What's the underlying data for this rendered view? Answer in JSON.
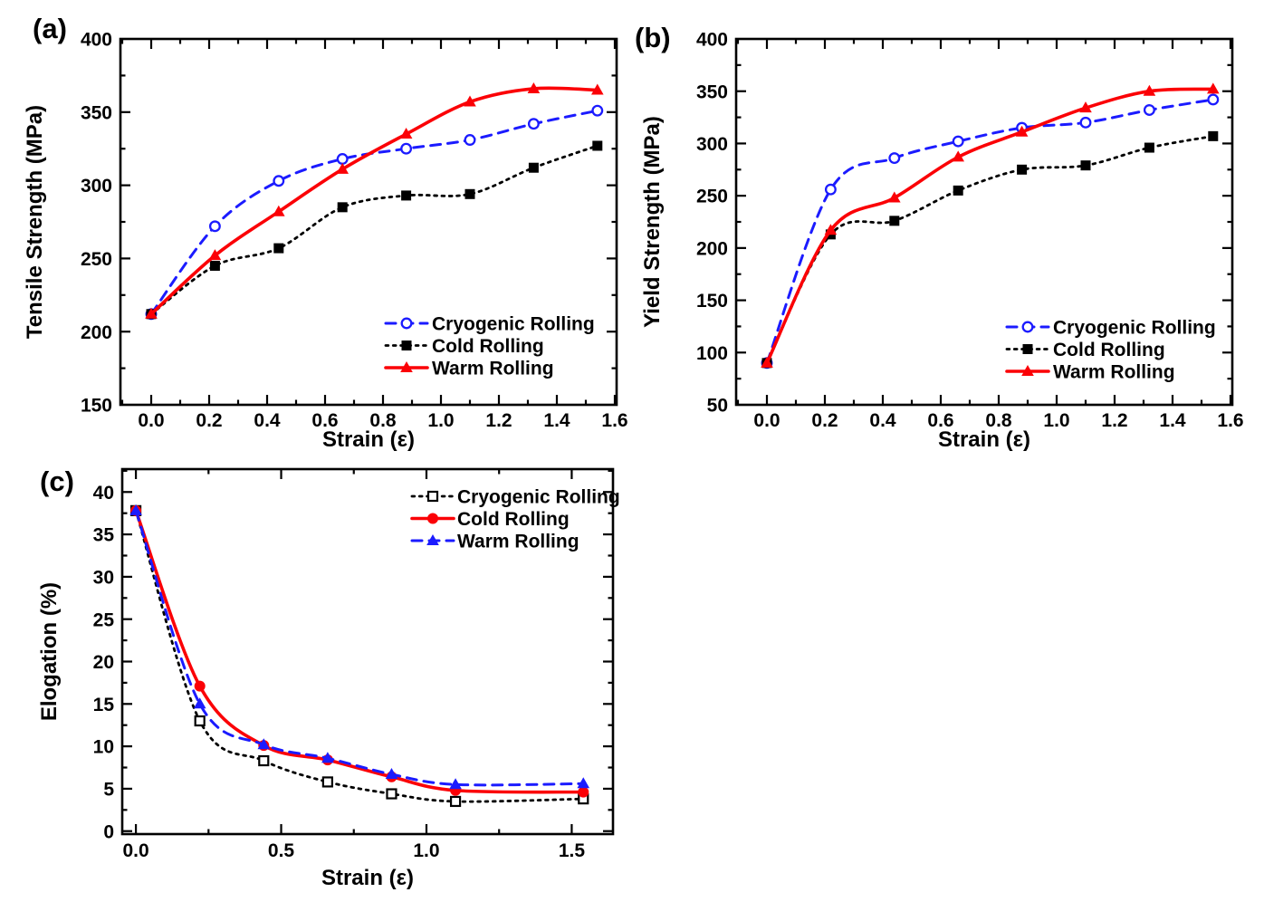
{
  "figure": {
    "background": "#ffffff"
  },
  "chart_data": [
    {
      "panel": "(a)",
      "type": "line",
      "xlabel": "Strain (ε)",
      "ylabel": "Tensile Strength (MPa)",
      "xlim": [
        -0.10625,
        1.60625
      ],
      "ylim": [
        150,
        400
      ],
      "xticks": [
        0.0,
        0.2,
        0.4,
        0.6,
        0.8,
        1.0,
        1.2,
        1.4,
        1.6
      ],
      "xtick_labels": [
        "0.0",
        "0.2",
        "0.4",
        "0.6",
        "0.8",
        "1.0",
        "1.2",
        "1.4",
        "1.6"
      ],
      "x_minor_step": 0.1,
      "yticks": [
        150,
        200,
        250,
        300,
        350,
        400
      ],
      "ytick_labels": [
        "150",
        "200",
        "250",
        "300",
        "350",
        "400"
      ],
      "y_minor_step": 25,
      "grid": false,
      "legend_position": "lower-right",
      "x": [
        0.0,
        0.22,
        0.44,
        0.66,
        0.88,
        1.1,
        1.32,
        1.54
      ],
      "series": [
        {
          "name": "Cryogenic Rolling",
          "color": "#1b1bff",
          "line": "dashed",
          "marker": "open-circle",
          "values": [
            212,
            272,
            303,
            318,
            325,
            331,
            342,
            351
          ]
        },
        {
          "name": "Cold Rolling",
          "color": "#000000",
          "line": "dotted",
          "marker": "filled-square",
          "values": [
            212,
            245,
            257,
            285,
            293,
            294,
            312,
            327
          ]
        },
        {
          "name": "Warm Rolling",
          "color": "#fb0006",
          "line": "solid",
          "marker": "filled-triangle",
          "values": [
            212,
            252,
            282,
            311,
            335,
            357,
            366,
            365
          ]
        }
      ]
    },
    {
      "panel": "(b)",
      "type": "line",
      "xlabel": "Strain (ε)",
      "ylabel": "Yield Strength (MPa)",
      "xlim": [
        -0.10625,
        1.60625
      ],
      "ylim": [
        50,
        400
      ],
      "xticks": [
        0.0,
        0.2,
        0.4,
        0.6,
        0.8,
        1.0,
        1.2,
        1.4,
        1.6
      ],
      "xtick_labels": [
        "0.0",
        "0.2",
        "0.4",
        "0.6",
        "0.8",
        "1.0",
        "1.2",
        "1.4",
        "1.6"
      ],
      "x_minor_step": 0.1,
      "yticks": [
        50,
        100,
        150,
        200,
        250,
        300,
        350,
        400
      ],
      "ytick_labels": [
        "50",
        "100",
        "150",
        "200",
        "250",
        "300",
        "350",
        "400"
      ],
      "y_minor_step": 25,
      "grid": false,
      "legend_position": "lower-right",
      "x": [
        0.0,
        0.22,
        0.44,
        0.66,
        0.88,
        1.1,
        1.32,
        1.54
      ],
      "series": [
        {
          "name": "Cryogenic Rolling",
          "color": "#1b1bff",
          "line": "dashed",
          "marker": "open-circle",
          "values": [
            90,
            256,
            286,
            302,
            315,
            320,
            332,
            342
          ]
        },
        {
          "name": "Cold Rolling",
          "color": "#000000",
          "line": "dotted",
          "marker": "filled-square",
          "values": [
            90,
            213,
            226,
            255,
            275,
            279,
            296,
            307
          ]
        },
        {
          "name": "Warm Rolling",
          "color": "#fb0006",
          "line": "solid",
          "marker": "filled-triangle",
          "values": [
            90,
            217,
            248,
            287,
            311,
            334,
            350,
            352
          ]
        }
      ]
    },
    {
      "panel": "(c)",
      "type": "line",
      "xlabel": "Strain (ε)",
      "ylabel": "Elogation (%)",
      "xlim": [
        -0.047,
        1.642
      ],
      "ylim": [
        -0.35,
        42.7
      ],
      "xticks": [
        0.0,
        0.5,
        1.0,
        1.5
      ],
      "xtick_labels": [
        "0.0",
        "0.5",
        "1.0",
        "1.5"
      ],
      "x_minor_step": 0.25,
      "yticks": [
        0,
        5,
        10,
        15,
        20,
        25,
        30,
        35,
        40
      ],
      "ytick_labels": [
        "0",
        "5",
        "10",
        "15",
        "20",
        "25",
        "30",
        "35",
        "40"
      ],
      "y_minor_step": 2.5,
      "grid": false,
      "legend_position": "upper-right",
      "x": [
        0.0,
        0.22,
        0.44,
        0.66,
        0.88,
        1.1,
        1.54
      ],
      "series": [
        {
          "name": "Cryogenic Rolling",
          "color": "#000000",
          "line": "dotted",
          "marker": "open-square",
          "values": [
            37.8,
            13.0,
            8.3,
            5.8,
            4.4,
            3.5,
            3.8
          ]
        },
        {
          "name": "Cold Rolling",
          "color": "#fb0006",
          "line": "solid",
          "marker": "filled-circle",
          "values": [
            37.8,
            17.1,
            10.1,
            8.4,
            6.4,
            4.8,
            4.6
          ]
        },
        {
          "name": "Warm Rolling",
          "color": "#1b1bff",
          "line": "dashed",
          "marker": "filled-triangle",
          "values": [
            37.8,
            15.0,
            10.2,
            8.6,
            6.7,
            5.5,
            5.6
          ]
        }
      ]
    }
  ]
}
